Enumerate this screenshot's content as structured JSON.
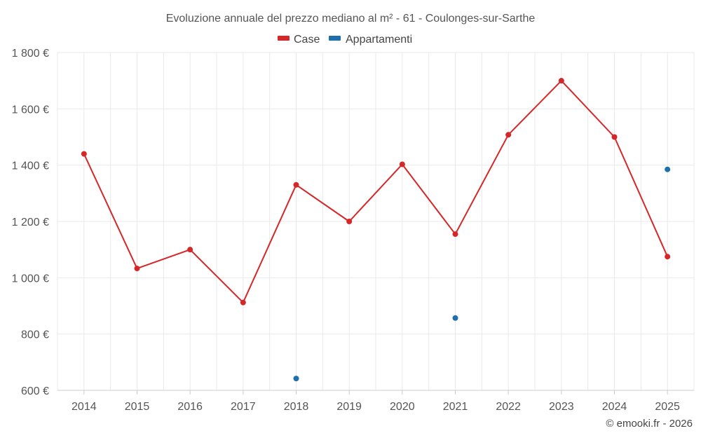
{
  "colors": {
    "case": "#d62728",
    "appartamenti": "#1f6fae"
  },
  "credit": "© emooki.fr - 2026",
  "chart_data": {
    "type": "line",
    "title": "Evoluzione annuale del prezzo mediano al m² - 61 - Coulonges-sur-Sarthe",
    "xlabel": "",
    "ylabel": "",
    "categories": [
      "2014",
      "2015",
      "2016",
      "2017",
      "2018",
      "2019",
      "2020",
      "2021",
      "2022",
      "2023",
      "2024",
      "2025"
    ],
    "ylim": [
      600,
      1800
    ],
    "yticks": [
      600,
      800,
      1000,
      1200,
      1400,
      1600,
      1800
    ],
    "ytick_labels": [
      "600 €",
      "800 €",
      "1 000 €",
      "1 200 €",
      "1 400 €",
      "1 600 €",
      "1 800 €"
    ],
    "grid": true,
    "legend_position": "top-center",
    "series": [
      {
        "name": "Case",
        "values": [
          1440,
          1033,
          1100,
          912,
          1330,
          1200,
          1403,
          1155,
          1508,
          1700,
          1500,
          1075
        ]
      },
      {
        "name": "Appartamenti",
        "values": [
          null,
          null,
          null,
          null,
          642,
          null,
          null,
          857,
          null,
          null,
          null,
          1385
        ]
      }
    ]
  }
}
